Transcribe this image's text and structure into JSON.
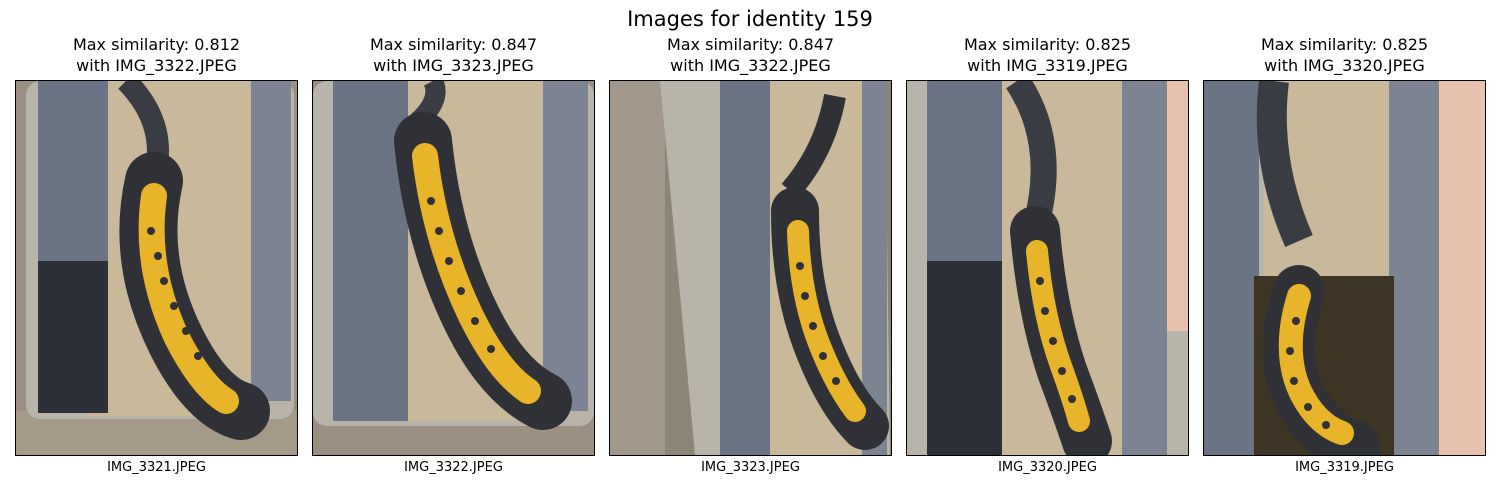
{
  "figure": {
    "title": "Images for identity 159"
  },
  "panels": [
    {
      "title_line1": "Max similarity: 0.812",
      "title_line2": "with IMG_3322.JPEG",
      "caption": "IMG_3321.JPEG"
    },
    {
      "title_line1": "Max similarity: 0.847",
      "title_line2": "with IMG_3323.JPEG",
      "caption": "IMG_3322.JPEG"
    },
    {
      "title_line1": "Max similarity: 0.847",
      "title_line2": "with IMG_3322.JPEG",
      "caption": "IMG_3323.JPEG"
    },
    {
      "title_line1": "Max similarity: 0.825",
      "title_line2": "with IMG_3319.JPEG",
      "caption": "IMG_3320.JPEG"
    },
    {
      "title_line1": "Max similarity: 0.825",
      "title_line2": "with IMG_3320.JPEG",
      "caption": "IMG_3319.JPEG"
    }
  ],
  "colors": {
    "newt_belly": "#e8b52a",
    "newt_body": "#2f3136",
    "sand": "#c9b89a",
    "ruler": "#6b7485",
    "gravel": "#9a8f80"
  }
}
